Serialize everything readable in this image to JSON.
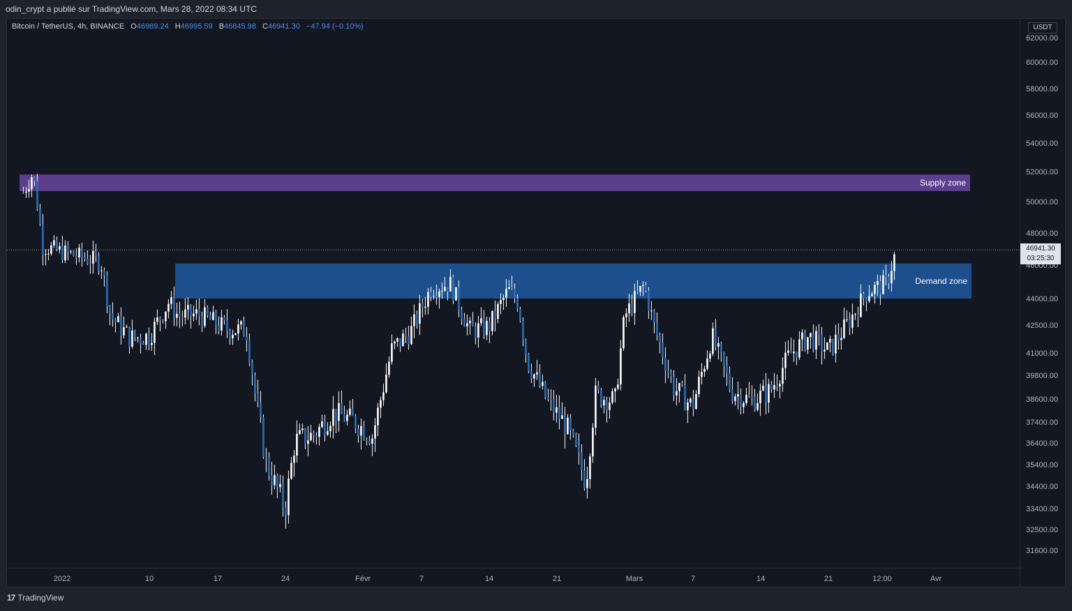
{
  "header": {
    "attribution": "odin_crypt a publié sur TradingView.com, Mars 28, 2022 08:34 UTC"
  },
  "legend": {
    "symbol": "Bitcoin / TetherUS, 4h, BINANCE",
    "open_label": "O",
    "open": "46989.24",
    "high_label": "H",
    "high": "46995.59",
    "low_label": "B",
    "low": "46845.98",
    "close_label": "C",
    "close": "46941.30",
    "change": "−47.94 (−0.10%)"
  },
  "price_axis": {
    "currency": "USDT",
    "last_price": "46941.30",
    "countdown": "03:25:30"
  },
  "footer": {
    "brand": "TradingView"
  },
  "colors": {
    "background": "#131722",
    "candle": "#ffffff",
    "supply_zone": "#5b3f8c",
    "demand_zone": "#1c4f8c"
  },
  "chart_data": {
    "type": "candlestick",
    "timeframe": "4h",
    "y_ticks": [
      31600,
      32500,
      33400,
      34400,
      35400,
      36400,
      37400,
      38600,
      39800,
      41000,
      42500,
      44000,
      46000,
      48000,
      50000,
      52000,
      54000,
      56000,
      58000,
      60000,
      62000
    ],
    "y_tick_labels": [
      "31600.00",
      "32500.00",
      "33400.00",
      "34400.00",
      "35400.00",
      "36400.00",
      "37400.00",
      "38600.00",
      "39800.00",
      "41000.00",
      "42500.00",
      "44000.00",
      "46000.00",
      "48000.00",
      "50000.00",
      "52000.00",
      "54000.00",
      "56000.00",
      "58000.00",
      "60000.00",
      "62000.00"
    ],
    "x_ticks": [
      "2022",
      "10",
      "17",
      "24",
      "Févr",
      "7",
      "14",
      "21",
      "Mars",
      "7",
      "14",
      "21",
      "12:00",
      "Avr"
    ],
    "ylim": [
      30800,
      62600
    ],
    "zones": [
      {
        "name": "Supply zone",
        "low": 50700,
        "high": 51800
      },
      {
        "name": "Demand zone",
        "low": 44000,
        "high": 46100
      }
    ],
    "last_price": 46941.3,
    "series": [
      {
        "date": "2021-12-28",
        "close": 50600
      },
      {
        "date": "2021-12-29",
        "close": 51900
      },
      {
        "date": "2021-12-30",
        "close": 47200
      },
      {
        "date": "2022-01-01",
        "close": 46800
      },
      {
        "date": "2022-01-03",
        "close": 46500
      },
      {
        "date": "2022-01-05",
        "close": 46200
      },
      {
        "date": "2022-01-06",
        "close": 43000
      },
      {
        "date": "2022-01-08",
        "close": 41800
      },
      {
        "date": "2022-01-10",
        "close": 41900
      },
      {
        "date": "2022-01-12",
        "close": 43800
      },
      {
        "date": "2022-01-13",
        "close": 43000
      },
      {
        "date": "2022-01-15",
        "close": 43100
      },
      {
        "date": "2022-01-18",
        "close": 42300
      },
      {
        "date": "2022-01-20",
        "close": 42200
      },
      {
        "date": "2022-01-21",
        "close": 38500
      },
      {
        "date": "2022-01-22",
        "close": 35500
      },
      {
        "date": "2022-01-24",
        "close": 33400
      },
      {
        "date": "2022-01-25",
        "close": 36500
      },
      {
        "date": "2022-01-27",
        "close": 36800
      },
      {
        "date": "2022-01-29",
        "close": 37900
      },
      {
        "date": "2022-01-31",
        "close": 37500
      },
      {
        "date": "2022-02-02",
        "close": 36700
      },
      {
        "date": "2022-02-04",
        "close": 41200
      },
      {
        "date": "2022-02-06",
        "close": 42200
      },
      {
        "date": "2022-02-08",
        "close": 44600
      },
      {
        "date": "2022-02-10",
        "close": 44900
      },
      {
        "date": "2022-02-12",
        "close": 42200
      },
      {
        "date": "2022-02-14",
        "close": 42400
      },
      {
        "date": "2022-02-16",
        "close": 44500
      },
      {
        "date": "2022-02-17",
        "close": 43800
      },
      {
        "date": "2022-02-18",
        "close": 40500
      },
      {
        "date": "2022-02-20",
        "close": 38500
      },
      {
        "date": "2022-02-22",
        "close": 37200
      },
      {
        "date": "2022-02-24",
        "close": 34600
      },
      {
        "date": "2022-02-25",
        "close": 38800
      },
      {
        "date": "2022-02-27",
        "close": 38500
      },
      {
        "date": "2022-02-28",
        "close": 43000
      },
      {
        "date": "2022-03-02",
        "close": 44800
      },
      {
        "date": "2022-03-03",
        "close": 42500
      },
      {
        "date": "2022-03-05",
        "close": 39200
      },
      {
        "date": "2022-03-07",
        "close": 38200
      },
      {
        "date": "2022-03-09",
        "close": 41900
      },
      {
        "date": "2022-03-11",
        "close": 39000
      },
      {
        "date": "2022-03-13",
        "close": 38500
      },
      {
        "date": "2022-03-15",
        "close": 39000
      },
      {
        "date": "2022-03-17",
        "close": 40900
      },
      {
        "date": "2022-03-19",
        "close": 41900
      },
      {
        "date": "2022-03-21",
        "close": 41100
      },
      {
        "date": "2022-03-23",
        "close": 42600
      },
      {
        "date": "2022-03-25",
        "close": 44400
      },
      {
        "date": "2022-03-27",
        "close": 44900
      },
      {
        "date": "2022-03-28",
        "close": 46941
      }
    ]
  }
}
